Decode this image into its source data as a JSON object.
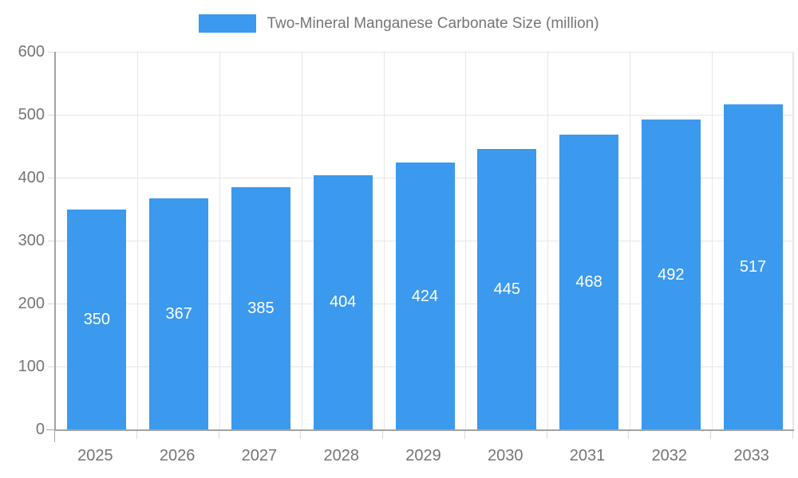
{
  "chart_data": {
    "type": "bar",
    "title": "Two-Mineral Manganese Carbonate Size (million)",
    "categories": [
      "2025",
      "2026",
      "2027",
      "2028",
      "2029",
      "2030",
      "2031",
      "2032",
      "2033"
    ],
    "values": [
      350,
      367,
      385,
      404,
      424,
      445,
      468,
      492,
      517
    ],
    "xlabel": "",
    "ylabel": "",
    "ylim": [
      0,
      600
    ],
    "yticks": [
      0,
      100,
      200,
      300,
      400,
      500,
      600
    ],
    "grid": true,
    "legend_position": "top",
    "bar_color": "#3b99ee",
    "value_label_color": "#ffffff",
    "axis_text_color": "#757575",
    "gridline_color": "#e6e6e6",
    "axis_line_color": "#a3a3a3"
  }
}
